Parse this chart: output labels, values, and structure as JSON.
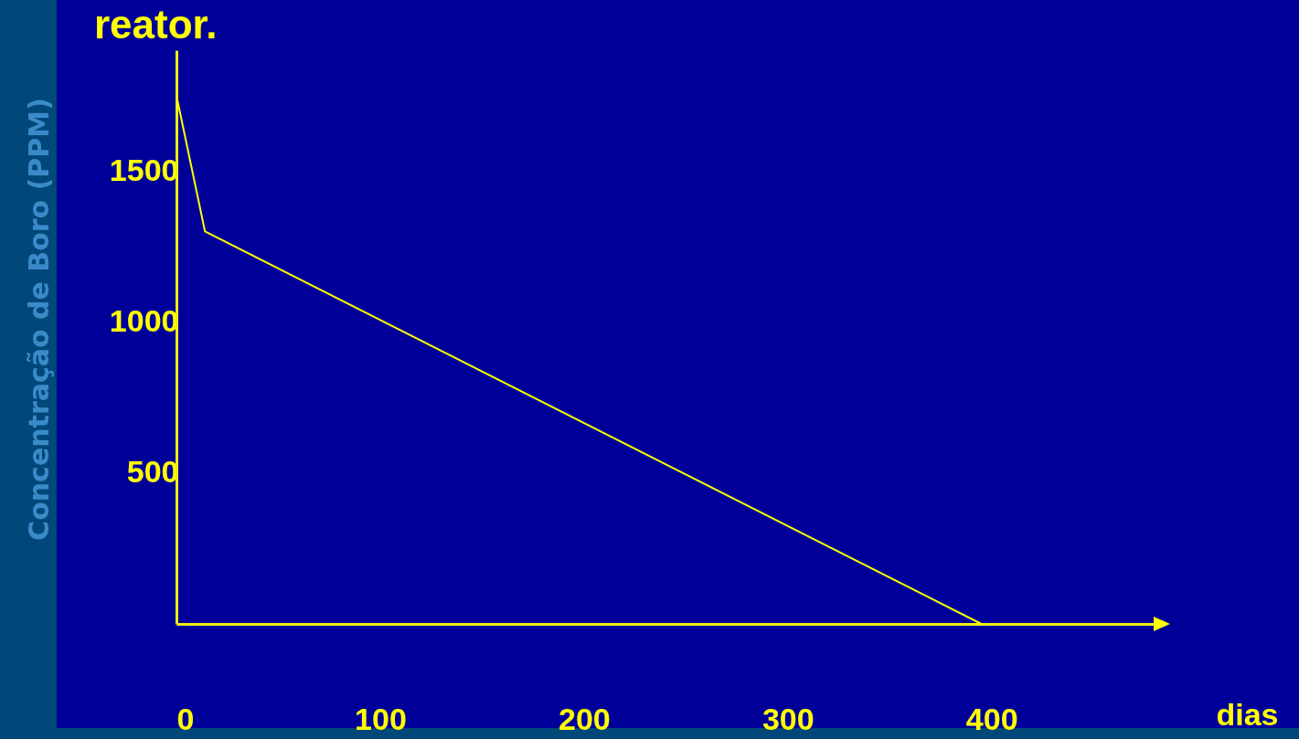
{
  "chart_data": {
    "type": "line",
    "title": "reator.",
    "xlabel": "dias",
    "ylabel": "Concentração de Boro (PPM)",
    "x": [
      0,
      14,
      395
    ],
    "series": [
      {
        "color": "#ffff00",
        "values": [
          1750,
          1300,
          0
        ]
      }
    ],
    "xlim": [
      0,
      480
    ],
    "ylim": [
      0,
      1900
    ],
    "xticks": [
      0,
      100,
      200,
      300,
      400
    ],
    "yticks": [
      500,
      1000,
      1500
    ],
    "grid": false,
    "marker": "none"
  }
}
